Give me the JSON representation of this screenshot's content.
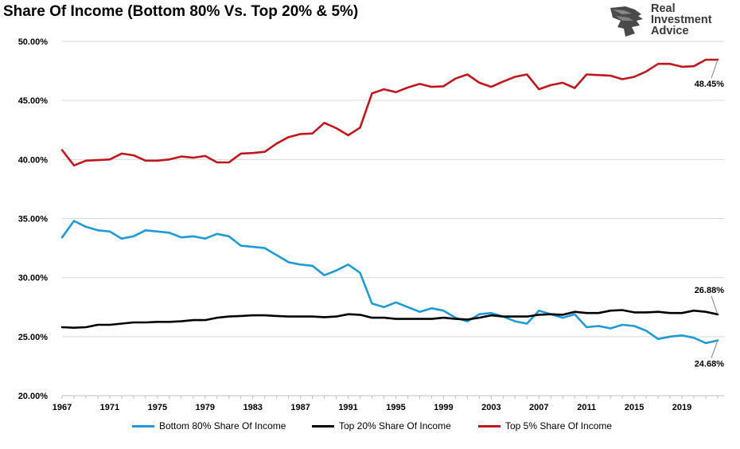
{
  "chart_data": {
    "type": "line",
    "title": "Share Of Income (Bottom 80% Vs. Top 20% & 5%)",
    "x": [
      1967,
      1968,
      1969,
      1970,
      1971,
      1972,
      1973,
      1974,
      1975,
      1976,
      1977,
      1978,
      1979,
      1980,
      1981,
      1982,
      1983,
      1984,
      1985,
      1986,
      1987,
      1988,
      1989,
      1990,
      1991,
      1992,
      1993,
      1994,
      1995,
      1996,
      1997,
      1998,
      1999,
      2000,
      2001,
      2002,
      2003,
      2004,
      2005,
      2006,
      2007,
      2008,
      2009,
      2010,
      2011,
      2012,
      2013,
      2014,
      2015,
      2016,
      2017,
      2018,
      2019,
      2020,
      2021,
      2022
    ],
    "series": [
      {
        "name": "Bottom 80% Share Of Income",
        "color": "#1f9ad6",
        "values": [
          33.4,
          34.8,
          34.3,
          34.0,
          33.9,
          33.3,
          33.5,
          34.0,
          33.9,
          33.8,
          33.4,
          33.5,
          33.3,
          33.7,
          33.5,
          32.7,
          32.6,
          32.5,
          31.9,
          31.3,
          31.1,
          31.0,
          30.2,
          30.6,
          31.1,
          30.4,
          27.8,
          27.5,
          27.9,
          27.5,
          27.1,
          27.4,
          27.2,
          26.6,
          26.3,
          26.9,
          27.0,
          26.7,
          26.3,
          26.1,
          27.2,
          26.9,
          26.6,
          26.9,
          25.8,
          25.9,
          25.7,
          26.0,
          25.9,
          25.5,
          24.8,
          25.0,
          25.1,
          24.9,
          24.45,
          24.68
        ]
      },
      {
        "name": "Top 20% Share Of Income",
        "color": "#000000",
        "values": [
          25.8,
          25.75,
          25.8,
          26.0,
          26.0,
          26.1,
          26.2,
          26.2,
          26.25,
          26.25,
          26.3,
          26.4,
          26.4,
          26.6,
          26.7,
          26.75,
          26.8,
          26.8,
          26.75,
          26.7,
          26.7,
          26.7,
          26.65,
          26.7,
          26.9,
          26.85,
          26.6,
          26.6,
          26.5,
          26.5,
          26.5,
          26.5,
          26.6,
          26.5,
          26.45,
          26.6,
          26.8,
          26.7,
          26.7,
          26.7,
          26.85,
          26.9,
          26.85,
          27.1,
          27.0,
          27.0,
          27.2,
          27.25,
          27.05,
          27.05,
          27.1,
          27.0,
          27.0,
          27.2,
          27.1,
          26.88
        ]
      },
      {
        "name": "Top 5% Share Of Income",
        "color": "#c0171c",
        "values": [
          40.8,
          39.5,
          39.9,
          39.95,
          40.0,
          40.5,
          40.35,
          39.9,
          39.9,
          40.0,
          40.25,
          40.15,
          40.3,
          39.75,
          39.75,
          40.5,
          40.55,
          40.65,
          41.35,
          41.9,
          42.15,
          42.2,
          43.1,
          42.65,
          42.05,
          42.7,
          45.6,
          45.95,
          45.7,
          46.1,
          46.4,
          46.15,
          46.2,
          46.85,
          47.2,
          46.5,
          46.15,
          46.6,
          47.0,
          47.2,
          45.95,
          46.3,
          46.5,
          46.05,
          47.2,
          47.15,
          47.1,
          46.8,
          47.0,
          47.45,
          48.1,
          48.1,
          47.85,
          47.9,
          48.45,
          48.45
        ]
      }
    ],
    "xticks": [
      "1967",
      "1971",
      "1975",
      "1979",
      "1983",
      "1987",
      "1991",
      "1995",
      "1999",
      "2003",
      "2007",
      "2011",
      "2015",
      "2019"
    ],
    "yticks": [
      "20.00%",
      "25.00%",
      "30.00%",
      "35.00%",
      "40.00%",
      "45.00%",
      "50.00%"
    ],
    "ylim": [
      20,
      50
    ],
    "xlim": [
      1967,
      2022
    ],
    "grid": "horizontal",
    "legend_position": "bottom",
    "annotations": {
      "top5_end": "48.45%",
      "top20_end": "26.88%",
      "bottom80_end": "24.68%"
    }
  },
  "logo": {
    "line1": "Real",
    "line2": "Investment",
    "line3": "Advice"
  },
  "colors": {
    "bottom80": "#1f9ad6",
    "top20": "#000000",
    "top5": "#c0171c",
    "grid": "#d9d9d9"
  }
}
